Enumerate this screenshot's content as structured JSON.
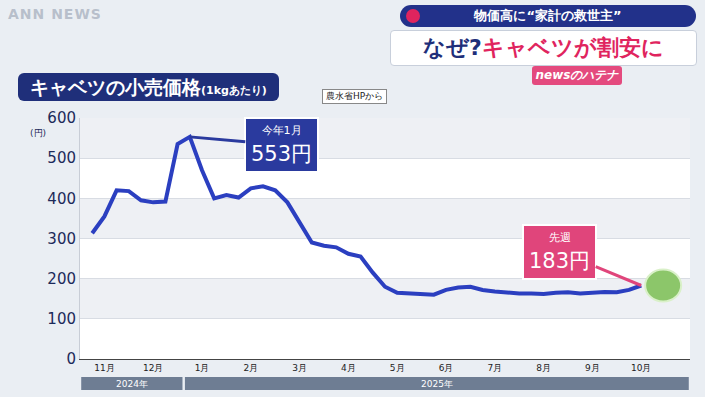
{
  "header": {
    "tag": "物価高に“家計の救世主”",
    "headline": [
      "なぜ?",
      "キャベツが割安に"
    ],
    "corner": "newsのハテナ",
    "watermark": "ANN NEWS"
  },
  "chart_data": {
    "type": "line",
    "title": "キャベツの小売価格",
    "title_note": "(1kgあたり)",
    "source": "農水省HPから",
    "y_unit": "(円)",
    "categories": [
      null,
      "11月",
      null,
      null,
      null,
      "12月",
      null,
      null,
      null,
      "1月",
      null,
      null,
      null,
      "2月",
      null,
      null,
      null,
      "3月",
      null,
      null,
      null,
      "4月",
      null,
      null,
      null,
      "5月",
      null,
      null,
      null,
      "6月",
      null,
      null,
      null,
      "7月",
      null,
      null,
      null,
      "8月",
      null,
      null,
      null,
      "9月",
      null,
      null,
      null,
      "10月"
    ],
    "values": [
      313,
      355,
      420,
      418,
      395,
      390,
      392,
      535,
      553,
      470,
      400,
      408,
      402,
      425,
      430,
      420,
      390,
      340,
      290,
      282,
      278,
      262,
      255,
      215,
      180,
      165,
      163,
      162,
      160,
      172,
      178,
      180,
      172,
      168,
      165,
      163,
      163,
      162,
      165,
      166,
      163,
      165,
      167,
      166,
      172,
      183
    ],
    "color": "#2b3fc0",
    "ylim": [
      0,
      600
    ],
    "yticks": [
      0,
      100,
      200,
      300,
      400,
      500,
      600
    ],
    "grid": true,
    "year_labels": [
      {
        "label": "2024年",
        "months": [
          "11月",
          "12月"
        ]
      },
      {
        "label": "2025年",
        "months": [
          "1月",
          "2月",
          "3月",
          "4月",
          "5月",
          "6月",
          "7月",
          "8月",
          "9月",
          "10月"
        ]
      }
    ],
    "annotations": [
      {
        "title": "今年1月",
        "label": "553円",
        "value": 553
      },
      {
        "title": "先週",
        "label": "183円",
        "value": 183
      }
    ]
  }
}
